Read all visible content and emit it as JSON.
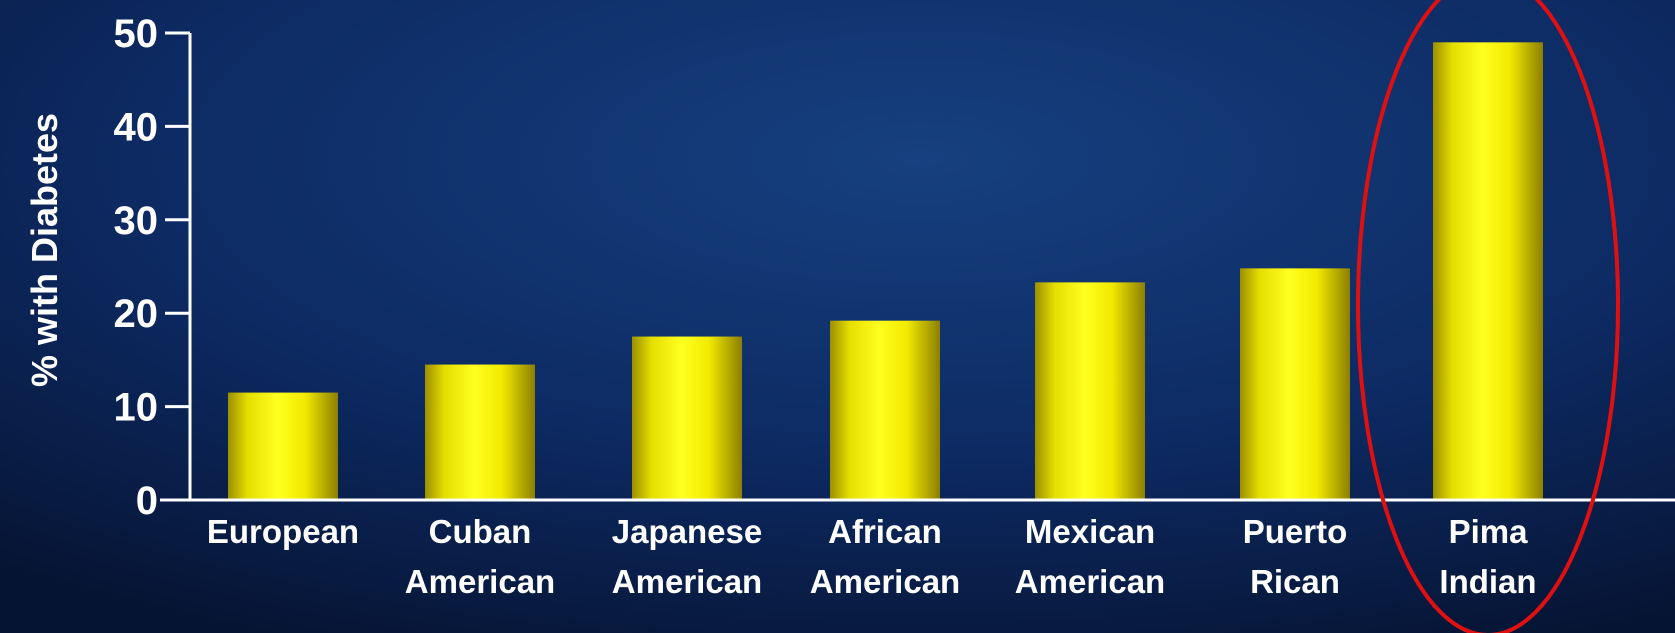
{
  "chart_data": {
    "type": "bar",
    "categories": [
      [
        "European"
      ],
      [
        "Cuban",
        "American"
      ],
      [
        "Japanese",
        "American"
      ],
      [
        "African",
        "American"
      ],
      [
        "Mexican",
        "American"
      ],
      [
        "Puerto",
        "Rican"
      ],
      [
        "Pima",
        "Indian"
      ]
    ],
    "values": [
      11.5,
      14.5,
      17.5,
      19.2,
      23.3,
      24.8,
      49
    ],
    "title": "",
    "xlabel": "",
    "ylabel": "% with Diabetes",
    "ylim": [
      0,
      50
    ],
    "yticks": [
      "0",
      "10",
      "20",
      "30",
      "40",
      "50"
    ],
    "grid": false,
    "legend": "none",
    "highlighted_category": "Pima Indian",
    "colors": {
      "background_dark": "#071536",
      "background_mid": "#123a78",
      "bar_yellow": "#ffff00",
      "bar_edge": "#a89a00",
      "axis": "#ffffff",
      "highlight_ring": "#e01010"
    }
  }
}
